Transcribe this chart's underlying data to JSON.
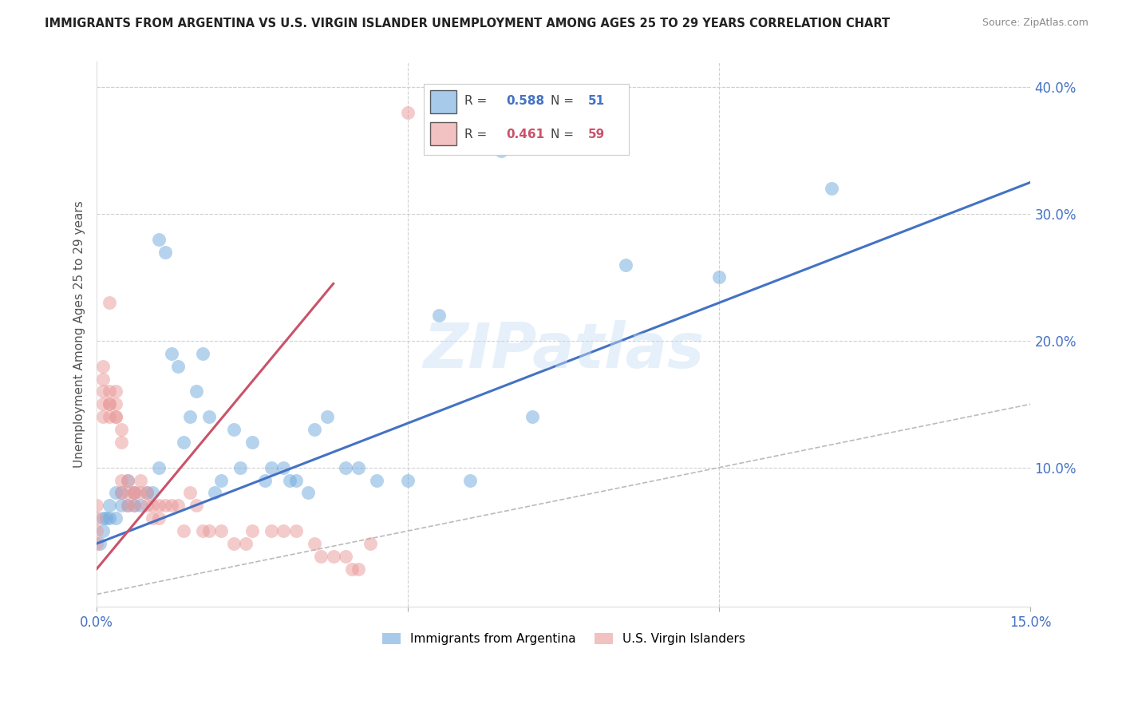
{
  "title": "IMMIGRANTS FROM ARGENTINA VS U.S. VIRGIN ISLANDER UNEMPLOYMENT AMONG AGES 25 TO 29 YEARS CORRELATION CHART",
  "source": "Source: ZipAtlas.com",
  "ylabel": "Unemployment Among Ages 25 to 29 years",
  "xlim": [
    0.0,
    0.15
  ],
  "ylim": [
    -0.01,
    0.42
  ],
  "yticks_right": [
    0.0,
    0.1,
    0.2,
    0.3,
    0.4
  ],
  "yticklabels_right": [
    "",
    "10.0%",
    "20.0%",
    "30.0%",
    "40.0%"
  ],
  "blue_color": "#6fa8dc",
  "pink_color": "#ea9999",
  "blue_line_color": "#4472c4",
  "pink_line_color": "#c9536a",
  "blue_r": "0.588",
  "blue_n": "51",
  "pink_r": "0.461",
  "pink_n": "59",
  "watermark": "ZIPatlas",
  "blue_scatter_x": [
    0.0005,
    0.001,
    0.001,
    0.0015,
    0.002,
    0.002,
    0.003,
    0.003,
    0.004,
    0.004,
    0.005,
    0.005,
    0.006,
    0.006,
    0.007,
    0.008,
    0.009,
    0.01,
    0.01,
    0.011,
    0.012,
    0.013,
    0.014,
    0.015,
    0.016,
    0.017,
    0.018,
    0.019,
    0.02,
    0.022,
    0.023,
    0.025,
    0.027,
    0.028,
    0.03,
    0.031,
    0.032,
    0.034,
    0.035,
    0.037,
    0.04,
    0.042,
    0.045,
    0.05,
    0.055,
    0.06,
    0.065,
    0.07,
    0.085,
    0.1,
    0.118
  ],
  "blue_scatter_y": [
    0.04,
    0.05,
    0.06,
    0.06,
    0.06,
    0.07,
    0.06,
    0.08,
    0.07,
    0.08,
    0.07,
    0.09,
    0.07,
    0.08,
    0.07,
    0.08,
    0.08,
    0.1,
    0.28,
    0.27,
    0.19,
    0.18,
    0.12,
    0.14,
    0.16,
    0.19,
    0.14,
    0.08,
    0.09,
    0.13,
    0.1,
    0.12,
    0.09,
    0.1,
    0.1,
    0.09,
    0.09,
    0.08,
    0.13,
    0.14,
    0.1,
    0.1,
    0.09,
    0.09,
    0.22,
    0.09,
    0.35,
    0.14,
    0.26,
    0.25,
    0.32
  ],
  "pink_scatter_x": [
    0.0,
    0.0,
    0.0,
    0.0,
    0.001,
    0.001,
    0.001,
    0.001,
    0.001,
    0.002,
    0.002,
    0.002,
    0.002,
    0.002,
    0.003,
    0.003,
    0.003,
    0.003,
    0.004,
    0.004,
    0.004,
    0.004,
    0.005,
    0.005,
    0.005,
    0.006,
    0.006,
    0.006,
    0.007,
    0.007,
    0.008,
    0.008,
    0.009,
    0.009,
    0.01,
    0.01,
    0.011,
    0.012,
    0.013,
    0.014,
    0.015,
    0.016,
    0.017,
    0.018,
    0.02,
    0.022,
    0.024,
    0.025,
    0.028,
    0.03,
    0.032,
    0.035,
    0.036,
    0.038,
    0.04,
    0.041,
    0.042,
    0.044,
    0.05
  ],
  "pink_scatter_y": [
    0.04,
    0.05,
    0.06,
    0.07,
    0.14,
    0.15,
    0.16,
    0.17,
    0.18,
    0.14,
    0.15,
    0.15,
    0.16,
    0.23,
    0.14,
    0.14,
    0.15,
    0.16,
    0.08,
    0.09,
    0.12,
    0.13,
    0.07,
    0.08,
    0.09,
    0.07,
    0.08,
    0.08,
    0.08,
    0.09,
    0.07,
    0.08,
    0.06,
    0.07,
    0.06,
    0.07,
    0.07,
    0.07,
    0.07,
    0.05,
    0.08,
    0.07,
    0.05,
    0.05,
    0.05,
    0.04,
    0.04,
    0.05,
    0.05,
    0.05,
    0.05,
    0.04,
    0.03,
    0.03,
    0.03,
    0.02,
    0.02,
    0.04,
    0.38
  ],
  "grid_color": "#d0d0d0",
  "background_color": "#ffffff",
  "blue_line_x0": 0.0,
  "blue_line_y0": 0.04,
  "blue_line_x1": 0.15,
  "blue_line_y1": 0.325,
  "pink_line_x0": 0.0,
  "pink_line_y0": 0.02,
  "pink_line_x1": 0.038,
  "pink_line_y1": 0.245
}
